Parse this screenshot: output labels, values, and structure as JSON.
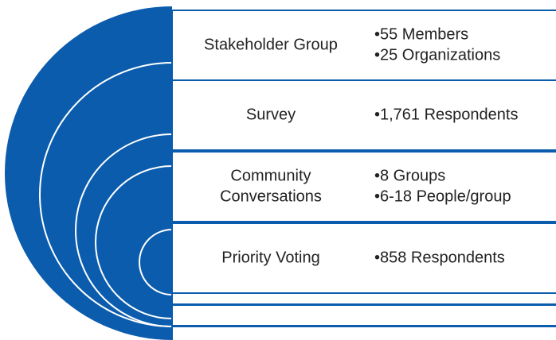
{
  "rows": [
    {
      "label": [
        "Stakeholder Group"
      ],
      "bullets": [
        "•55 Members",
        "•25 Organizations"
      ]
    },
    {
      "label": [
        "Survey"
      ],
      "bullets": [
        "•1,761 Respondents"
      ]
    },
    {
      "label": [
        "Community",
        "Conversations"
      ],
      "bullets": [
        "•8 Groups",
        "•6-18 People/group"
      ]
    },
    {
      "label": [
        "Priority Voting"
      ],
      "bullets": [
        "•858 Respondents"
      ]
    }
  ]
}
